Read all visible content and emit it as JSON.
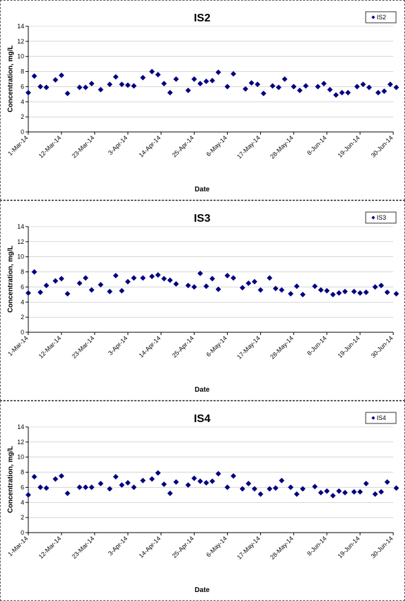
{
  "chart_data": [
    {
      "type": "scatter",
      "title": "IS2",
      "xlabel": "Date",
      "ylabel": "Concentration, mg/L",
      "ylim": [
        0,
        14
      ],
      "yticks": [
        "0",
        "2",
        "4",
        "6",
        "8",
        "10",
        "12",
        "14"
      ],
      "xticks": [
        "1-Mar-14",
        "12-Mar-14",
        "23-Mar-14",
        "3-Apr-14",
        "14-Apr-14",
        "25-Apr-14",
        "6-May-14",
        "17-May-14",
        "28-May-14",
        "8-Jun-14",
        "19-Jun-14",
        "30-Jun-14"
      ],
      "xlim": [
        "2014-03-01",
        "2014-06-30"
      ],
      "legend": "top-right",
      "series": [
        {
          "name": "IS2",
          "color": "#000080",
          "points": [
            {
              "x": "2014-03-01",
              "y": 5.2
            },
            {
              "x": "2014-03-03",
              "y": 7.4
            },
            {
              "x": "2014-03-05",
              "y": 6.0
            },
            {
              "x": "2014-03-07",
              "y": 5.9
            },
            {
              "x": "2014-03-10",
              "y": 6.9
            },
            {
              "x": "2014-03-12",
              "y": 7.5
            },
            {
              "x": "2014-03-14",
              "y": 5.1
            },
            {
              "x": "2014-03-18",
              "y": 5.9
            },
            {
              "x": "2014-03-20",
              "y": 5.9
            },
            {
              "x": "2014-03-22",
              "y": 6.4
            },
            {
              "x": "2014-03-25",
              "y": 5.6
            },
            {
              "x": "2014-03-28",
              "y": 6.3
            },
            {
              "x": "2014-03-30",
              "y": 7.3
            },
            {
              "x": "2014-04-01",
              "y": 6.3
            },
            {
              "x": "2014-04-03",
              "y": 6.2
            },
            {
              "x": "2014-04-05",
              "y": 6.1
            },
            {
              "x": "2014-04-08",
              "y": 7.2
            },
            {
              "x": "2014-04-11",
              "y": 8.0
            },
            {
              "x": "2014-04-13",
              "y": 7.6
            },
            {
              "x": "2014-04-15",
              "y": 6.4
            },
            {
              "x": "2014-04-17",
              "y": 5.2
            },
            {
              "x": "2014-04-19",
              "y": 7.0
            },
            {
              "x": "2014-04-23",
              "y": 5.5
            },
            {
              "x": "2014-04-25",
              "y": 7.0
            },
            {
              "x": "2014-04-27",
              "y": 6.4
            },
            {
              "x": "2014-04-29",
              "y": 6.7
            },
            {
              "x": "2014-05-01",
              "y": 6.8
            },
            {
              "x": "2014-05-03",
              "y": 7.9
            },
            {
              "x": "2014-05-06",
              "y": 6.0
            },
            {
              "x": "2014-05-08",
              "y": 7.7
            },
            {
              "x": "2014-05-12",
              "y": 5.7
            },
            {
              "x": "2014-05-14",
              "y": 6.5
            },
            {
              "x": "2014-05-16",
              "y": 6.3
            },
            {
              "x": "2014-05-18",
              "y": 5.1
            },
            {
              "x": "2014-05-21",
              "y": 6.1
            },
            {
              "x": "2014-05-23",
              "y": 5.9
            },
            {
              "x": "2014-05-25",
              "y": 7.0
            },
            {
              "x": "2014-05-28",
              "y": 6.0
            },
            {
              "x": "2014-05-30",
              "y": 5.5
            },
            {
              "x": "2014-06-01",
              "y": 6.1
            },
            {
              "x": "2014-06-05",
              "y": 6.0
            },
            {
              "x": "2014-06-07",
              "y": 6.4
            },
            {
              "x": "2014-06-09",
              "y": 5.6
            },
            {
              "x": "2014-06-11",
              "y": 4.9
            },
            {
              "x": "2014-06-13",
              "y": 5.2
            },
            {
              "x": "2014-06-15",
              "y": 5.2
            },
            {
              "x": "2014-06-18",
              "y": 6.0
            },
            {
              "x": "2014-06-20",
              "y": 6.3
            },
            {
              "x": "2014-06-22",
              "y": 5.9
            },
            {
              "x": "2014-06-25",
              "y": 5.2
            },
            {
              "x": "2014-06-27",
              "y": 5.4
            },
            {
              "x": "2014-06-29",
              "y": 6.3
            },
            {
              "x": "2014-07-01",
              "y": 5.9
            }
          ]
        }
      ]
    },
    {
      "type": "scatter",
      "title": "IS3",
      "xlabel": "Date",
      "ylabel": "Concentration, mg/L",
      "ylim": [
        0,
        14
      ],
      "yticks": [
        "0",
        "2",
        "4",
        "6",
        "8",
        "10",
        "12",
        "14"
      ],
      "xticks": [
        "1-Mar-14",
        "12-Mar-14",
        "23-Mar-14",
        "3-Apr-14",
        "14-Apr-14",
        "25-Apr-14",
        "6-May-14",
        "17-May-14",
        "28-May-14",
        "8-Jun-14",
        "19-Jun-14",
        "30-Jun-14"
      ],
      "xlim": [
        "2014-03-01",
        "2014-06-30"
      ],
      "legend": "top-right",
      "series": [
        {
          "name": "IS3",
          "color": "#000080",
          "points": [
            {
              "x": "2014-03-01",
              "y": 5.2
            },
            {
              "x": "2014-03-03",
              "y": 8.0
            },
            {
              "x": "2014-03-05",
              "y": 5.3
            },
            {
              "x": "2014-03-07",
              "y": 6.2
            },
            {
              "x": "2014-03-10",
              "y": 6.8
            },
            {
              "x": "2014-03-12",
              "y": 7.1
            },
            {
              "x": "2014-03-14",
              "y": 5.1
            },
            {
              "x": "2014-03-18",
              "y": 6.5
            },
            {
              "x": "2014-03-20",
              "y": 7.2
            },
            {
              "x": "2014-03-22",
              "y": 5.6
            },
            {
              "x": "2014-03-25",
              "y": 6.3
            },
            {
              "x": "2014-03-28",
              "y": 5.4
            },
            {
              "x": "2014-03-30",
              "y": 7.5
            },
            {
              "x": "2014-04-01",
              "y": 5.5
            },
            {
              "x": "2014-04-03",
              "y": 6.7
            },
            {
              "x": "2014-04-05",
              "y": 7.2
            },
            {
              "x": "2014-04-08",
              "y": 7.2
            },
            {
              "x": "2014-04-11",
              "y": 7.4
            },
            {
              "x": "2014-04-13",
              "y": 7.6
            },
            {
              "x": "2014-04-15",
              "y": 7.1
            },
            {
              "x": "2014-04-17",
              "y": 6.9
            },
            {
              "x": "2014-04-19",
              "y": 6.4
            },
            {
              "x": "2014-04-23",
              "y": 6.2
            },
            {
              "x": "2014-04-25",
              "y": 6.0
            },
            {
              "x": "2014-04-27",
              "y": 7.8
            },
            {
              "x": "2014-04-29",
              "y": 6.1
            },
            {
              "x": "2014-05-01",
              "y": 7.1
            },
            {
              "x": "2014-05-03",
              "y": 5.7
            },
            {
              "x": "2014-05-06",
              "y": 7.5
            },
            {
              "x": "2014-05-08",
              "y": 7.2
            },
            {
              "x": "2014-05-11",
              "y": 5.9
            },
            {
              "x": "2014-05-13",
              "y": 6.5
            },
            {
              "x": "2014-05-15",
              "y": 6.7
            },
            {
              "x": "2014-05-17",
              "y": 5.6
            },
            {
              "x": "2014-05-20",
              "y": 7.2
            },
            {
              "x": "2014-05-22",
              "y": 5.8
            },
            {
              "x": "2014-05-24",
              "y": 5.6
            },
            {
              "x": "2014-05-27",
              "y": 5.1
            },
            {
              "x": "2014-05-29",
              "y": 6.1
            },
            {
              "x": "2014-05-31",
              "y": 5.0
            },
            {
              "x": "2014-06-04",
              "y": 6.1
            },
            {
              "x": "2014-06-06",
              "y": 5.6
            },
            {
              "x": "2014-06-08",
              "y": 5.5
            },
            {
              "x": "2014-06-10",
              "y": 5.0
            },
            {
              "x": "2014-06-12",
              "y": 5.2
            },
            {
              "x": "2014-06-14",
              "y": 5.4
            },
            {
              "x": "2014-06-17",
              "y": 5.4
            },
            {
              "x": "2014-06-19",
              "y": 5.2
            },
            {
              "x": "2014-06-21",
              "y": 5.3
            },
            {
              "x": "2014-06-24",
              "y": 6.0
            },
            {
              "x": "2014-06-26",
              "y": 6.2
            },
            {
              "x": "2014-06-28",
              "y": 5.3
            },
            {
              "x": "2014-07-01",
              "y": 5.1
            }
          ]
        }
      ]
    },
    {
      "type": "scatter",
      "title": "IS4",
      "xlabel": "Date",
      "ylabel": "Concentration, mg/L",
      "ylim": [
        0,
        14
      ],
      "yticks": [
        "0",
        "2",
        "4",
        "6",
        "8",
        "10",
        "12",
        "14"
      ],
      "xticks": [
        "1-Mar-14",
        "12-Mar-14",
        "23-Mar-14",
        "3-Apr-14",
        "14-Apr-14",
        "25-Apr-14",
        "6-May-14",
        "17-May-14",
        "28-May-14",
        "8-Jun-14",
        "19-Jun-14",
        "30-Jun-14"
      ],
      "xlim": [
        "2014-03-01",
        "2014-06-30"
      ],
      "legend": "top-right",
      "series": [
        {
          "name": "IS4",
          "color": "#000080",
          "points": [
            {
              "x": "2014-03-01",
              "y": 5.0
            },
            {
              "x": "2014-03-03",
              "y": 7.4
            },
            {
              "x": "2014-03-05",
              "y": 6.0
            },
            {
              "x": "2014-03-07",
              "y": 5.9
            },
            {
              "x": "2014-03-10",
              "y": 7.1
            },
            {
              "x": "2014-03-12",
              "y": 7.5
            },
            {
              "x": "2014-03-14",
              "y": 5.2
            },
            {
              "x": "2014-03-18",
              "y": 6.0
            },
            {
              "x": "2014-03-20",
              "y": 6.0
            },
            {
              "x": "2014-03-22",
              "y": 6.0
            },
            {
              "x": "2014-03-25",
              "y": 6.5
            },
            {
              "x": "2014-03-28",
              "y": 5.8
            },
            {
              "x": "2014-03-30",
              "y": 7.4
            },
            {
              "x": "2014-04-01",
              "y": 6.3
            },
            {
              "x": "2014-04-03",
              "y": 6.6
            },
            {
              "x": "2014-04-05",
              "y": 6.0
            },
            {
              "x": "2014-04-08",
              "y": 6.9
            },
            {
              "x": "2014-04-11",
              "y": 7.1
            },
            {
              "x": "2014-04-13",
              "y": 7.9
            },
            {
              "x": "2014-04-15",
              "y": 6.4
            },
            {
              "x": "2014-04-17",
              "y": 5.2
            },
            {
              "x": "2014-04-19",
              "y": 6.7
            },
            {
              "x": "2014-04-23",
              "y": 6.3
            },
            {
              "x": "2014-04-25",
              "y": 7.2
            },
            {
              "x": "2014-04-27",
              "y": 6.8
            },
            {
              "x": "2014-04-29",
              "y": 6.6
            },
            {
              "x": "2014-05-01",
              "y": 6.8
            },
            {
              "x": "2014-05-03",
              "y": 7.8
            },
            {
              "x": "2014-05-06",
              "y": 6.0
            },
            {
              "x": "2014-05-08",
              "y": 7.5
            },
            {
              "x": "2014-05-11",
              "y": 5.8
            },
            {
              "x": "2014-05-13",
              "y": 6.5
            },
            {
              "x": "2014-05-15",
              "y": 5.8
            },
            {
              "x": "2014-05-17",
              "y": 5.1
            },
            {
              "x": "2014-05-20",
              "y": 5.8
            },
            {
              "x": "2014-05-22",
              "y": 5.9
            },
            {
              "x": "2014-05-24",
              "y": 6.9
            },
            {
              "x": "2014-05-27",
              "y": 6.0
            },
            {
              "x": "2014-05-29",
              "y": 5.1
            },
            {
              "x": "2014-05-31",
              "y": 5.8
            },
            {
              "x": "2014-06-04",
              "y": 6.1
            },
            {
              "x": "2014-06-06",
              "y": 5.3
            },
            {
              "x": "2014-06-08",
              "y": 5.5
            },
            {
              "x": "2014-06-10",
              "y": 4.9
            },
            {
              "x": "2014-06-12",
              "y": 5.5
            },
            {
              "x": "2014-06-14",
              "y": 5.3
            },
            {
              "x": "2014-06-17",
              "y": 5.4
            },
            {
              "x": "2014-06-19",
              "y": 5.4
            },
            {
              "x": "2014-06-21",
              "y": 6.5
            },
            {
              "x": "2014-06-24",
              "y": 5.1
            },
            {
              "x": "2014-06-26",
              "y": 5.4
            },
            {
              "x": "2014-06-28",
              "y": 6.7
            },
            {
              "x": "2014-07-01",
              "y": 5.9
            }
          ]
        }
      ]
    }
  ]
}
